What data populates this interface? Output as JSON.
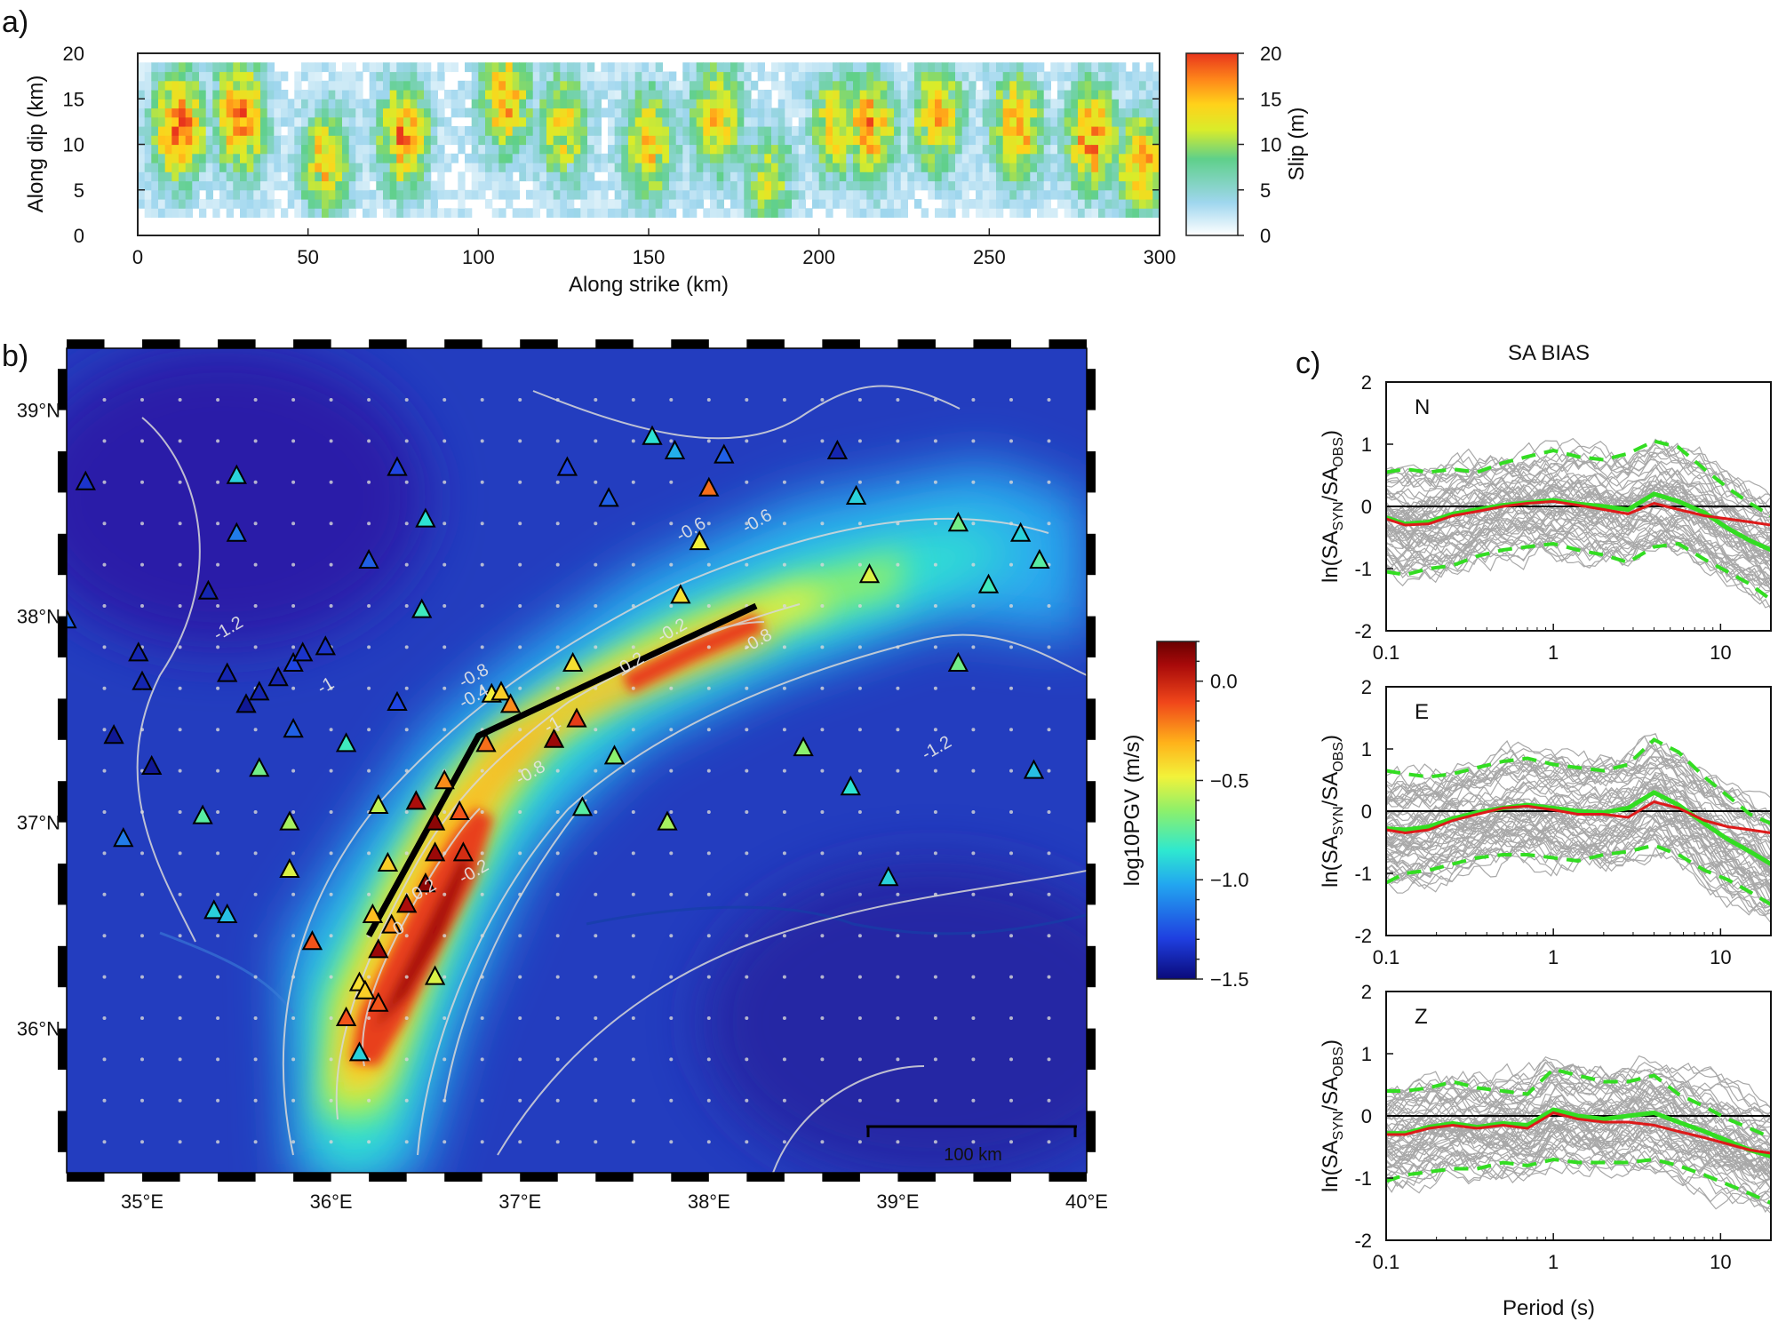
{
  "panels": {
    "a": "a)",
    "b": "b)",
    "c": "c)"
  },
  "chart_data": [
    {
      "id": "slip",
      "type": "heatmap",
      "xlabel": "Along strike (km)",
      "ylabel": "Along dip (km)",
      "xlim": [
        0,
        300
      ],
      "ylim": [
        0,
        20
      ],
      "xticks": [
        0,
        50,
        100,
        150,
        200,
        250,
        300
      ],
      "yticks": [
        0,
        5,
        10,
        15,
        20
      ],
      "patch_centers_km": [
        12,
        30,
        55,
        78,
        108,
        125,
        150,
        170,
        185,
        205,
        215,
        235,
        258,
        280,
        295
      ],
      "patch_peak_slip_m": [
        19,
        18,
        13,
        16,
        15,
        12,
        13,
        14,
        10,
        12,
        16,
        14,
        16,
        17,
        15
      ],
      "patch_centers_dip_km": [
        12,
        13,
        8,
        11,
        15,
        12,
        10,
        13,
        6,
        12,
        12,
        13,
        12,
        11,
        8
      ],
      "colorbar": {
        "label": "Slip (m)",
        "range": [
          0,
          20
        ],
        "ticks": [
          0,
          5,
          10,
          15,
          20
        ],
        "colors": [
          "#ffffff",
          "#9fd6ee",
          "#5fd08a",
          "#d9ec2a",
          "#ffd21a",
          "#ff8a1a",
          "#e8351c"
        ]
      }
    },
    {
      "id": "pgv-map",
      "type": "scatter",
      "xlim": [
        34.6,
        40.0
      ],
      "ylim": [
        35.3,
        39.3
      ],
      "xticks": [
        35,
        36,
        37,
        38,
        39,
        40
      ],
      "xticklabels": [
        "35°E",
        "36°E",
        "37°E",
        "38°E",
        "39°E",
        "40°E"
      ],
      "yticks": [
        36,
        37,
        38,
        39
      ],
      "yticklabels": [
        "36°N",
        "37°N",
        "38°N",
        "39°N"
      ],
      "fault_trace_lonlat": [
        [
          36.2,
          36.45
        ],
        [
          36.78,
          37.42
        ],
        [
          38.25,
          38.05
        ]
      ],
      "contour_labels": [
        "0.2",
        "0.2",
        "0",
        "-0.2",
        "-0.2",
        "-0.4",
        "-0.6",
        "-0.6",
        "-0.8",
        "-0.8",
        "-0.8",
        "-1",
        "-1",
        "-1.2",
        "-1.2"
      ],
      "stations": [
        {
          "lon": 34.7,
          "lat": 38.65,
          "pgv": -1.35
        },
        {
          "lon": 35.5,
          "lat": 38.68,
          "pgv": -1.0
        },
        {
          "lon": 35.5,
          "lat": 38.4,
          "pgv": -1.2
        },
        {
          "lon": 34.6,
          "lat": 37.98,
          "pgv": -1.25
        },
        {
          "lon": 35.35,
          "lat": 38.12,
          "pgv": -1.4
        },
        {
          "lon": 34.98,
          "lat": 37.82,
          "pgv": -1.4
        },
        {
          "lon": 35.0,
          "lat": 37.68,
          "pgv": -1.4
        },
        {
          "lon": 35.45,
          "lat": 37.72,
          "pgv": -1.4
        },
        {
          "lon": 35.55,
          "lat": 37.57,
          "pgv": -1.45
        },
        {
          "lon": 35.62,
          "lat": 37.63,
          "pgv": -1.4
        },
        {
          "lon": 35.72,
          "lat": 37.7,
          "pgv": -1.4
        },
        {
          "lon": 35.8,
          "lat": 37.77,
          "pgv": -1.3
        },
        {
          "lon": 35.85,
          "lat": 37.82,
          "pgv": -1.35
        },
        {
          "lon": 35.97,
          "lat": 37.85,
          "pgv": -1.35
        },
        {
          "lon": 34.85,
          "lat": 37.42,
          "pgv": -1.45
        },
        {
          "lon": 35.05,
          "lat": 37.27,
          "pgv": -1.45
        },
        {
          "lon": 35.8,
          "lat": 37.45,
          "pgv": -1.25
        },
        {
          "lon": 36.08,
          "lat": 37.38,
          "pgv": -0.9
        },
        {
          "lon": 35.62,
          "lat": 37.26,
          "pgv": -0.8
        },
        {
          "lon": 34.9,
          "lat": 36.92,
          "pgv": -1.2
        },
        {
          "lon": 35.32,
          "lat": 37.03,
          "pgv": -0.85
        },
        {
          "lon": 35.78,
          "lat": 37.0,
          "pgv": -0.7
        },
        {
          "lon": 35.78,
          "lat": 36.77,
          "pgv": -0.6
        },
        {
          "lon": 35.38,
          "lat": 36.57,
          "pgv": -1.0
        },
        {
          "lon": 35.45,
          "lat": 36.55,
          "pgv": -1.05
        },
        {
          "lon": 35.9,
          "lat": 36.42,
          "pgv": -0.2
        },
        {
          "lon": 36.35,
          "lat": 38.72,
          "pgv": -1.3
        },
        {
          "lon": 36.2,
          "lat": 38.27,
          "pgv": -1.25
        },
        {
          "lon": 36.5,
          "lat": 38.47,
          "pgv": -0.95
        },
        {
          "lon": 36.48,
          "lat": 38.03,
          "pgv": -0.9
        },
        {
          "lon": 36.35,
          "lat": 37.58,
          "pgv": -1.3
        },
        {
          "lon": 36.85,
          "lat": 37.62,
          "pgv": -0.55
        },
        {
          "lon": 36.9,
          "lat": 37.63,
          "pgv": -0.45
        },
        {
          "lon": 36.95,
          "lat": 37.57,
          "pgv": -0.3
        },
        {
          "lon": 37.28,
          "lat": 37.77,
          "pgv": -0.5
        },
        {
          "lon": 36.82,
          "lat": 37.38,
          "pgv": -0.25
        },
        {
          "lon": 37.18,
          "lat": 37.4,
          "pgv": 0.05
        },
        {
          "lon": 37.3,
          "lat": 37.5,
          "pgv": -0.15
        },
        {
          "lon": 37.5,
          "lat": 37.32,
          "pgv": -0.75
        },
        {
          "lon": 37.33,
          "lat": 37.07,
          "pgv": -0.85
        },
        {
          "lon": 37.78,
          "lat": 37.0,
          "pgv": -0.7
        },
        {
          "lon": 37.25,
          "lat": 38.72,
          "pgv": -1.3
        },
        {
          "lon": 37.47,
          "lat": 38.57,
          "pgv": -1.25
        },
        {
          "lon": 37.7,
          "lat": 38.87,
          "pgv": -0.95
        },
        {
          "lon": 37.82,
          "lat": 38.8,
          "pgv": -1.1
        },
        {
          "lon": 38.08,
          "lat": 38.78,
          "pgv": -1.25
        },
        {
          "lon": 38.0,
          "lat": 38.62,
          "pgv": -0.25
        },
        {
          "lon": 37.95,
          "lat": 38.36,
          "pgv": -0.55
        },
        {
          "lon": 37.85,
          "lat": 38.1,
          "pgv": -0.5
        },
        {
          "lon": 38.68,
          "lat": 38.8,
          "pgv": -1.4
        },
        {
          "lon": 38.78,
          "lat": 38.58,
          "pgv": -1.0
        },
        {
          "lon": 38.85,
          "lat": 38.2,
          "pgv": -0.6
        },
        {
          "lon": 39.32,
          "lat": 38.45,
          "pgv": -0.8
        },
        {
          "lon": 39.65,
          "lat": 38.4,
          "pgv": -1.0
        },
        {
          "lon": 39.75,
          "lat": 38.27,
          "pgv": -0.85
        },
        {
          "lon": 39.48,
          "lat": 38.15,
          "pgv": -0.9
        },
        {
          "lon": 39.32,
          "lat": 37.77,
          "pgv": -0.8
        },
        {
          "lon": 38.5,
          "lat": 37.36,
          "pgv": -0.75
        },
        {
          "lon": 39.72,
          "lat": 37.25,
          "pgv": -1.05
        },
        {
          "lon": 38.75,
          "lat": 37.17,
          "pgv": -0.95
        },
        {
          "lon": 38.95,
          "lat": 36.73,
          "pgv": -1.0
        },
        {
          "lon": 36.45,
          "lat": 37.1,
          "pgv": 0.0
        },
        {
          "lon": 36.55,
          "lat": 37.0,
          "pgv": 0.1
        },
        {
          "lon": 36.55,
          "lat": 36.85,
          "pgv": 0.05
        },
        {
          "lon": 36.5,
          "lat": 36.7,
          "pgv": 0.1
        },
        {
          "lon": 36.4,
          "lat": 36.6,
          "pgv": 0.0
        },
        {
          "lon": 36.6,
          "lat": 37.2,
          "pgv": -0.3
        },
        {
          "lon": 36.68,
          "lat": 37.05,
          "pgv": -0.2
        },
        {
          "lon": 36.3,
          "lat": 36.8,
          "pgv": -0.45
        },
        {
          "lon": 36.22,
          "lat": 36.55,
          "pgv": -0.4
        },
        {
          "lon": 36.32,
          "lat": 36.5,
          "pgv": -0.3
        },
        {
          "lon": 36.25,
          "lat": 36.38,
          "pgv": 0.05
        },
        {
          "lon": 36.15,
          "lat": 36.22,
          "pgv": -0.5
        },
        {
          "lon": 36.18,
          "lat": 36.18,
          "pgv": -0.45
        },
        {
          "lon": 36.08,
          "lat": 36.05,
          "pgv": -0.2
        },
        {
          "lon": 36.25,
          "lat": 36.12,
          "pgv": -0.2
        },
        {
          "lon": 36.55,
          "lat": 36.25,
          "pgv": -0.6
        },
        {
          "lon": 36.7,
          "lat": 36.85,
          "pgv": -0.1
        },
        {
          "lon": 36.15,
          "lat": 35.88,
          "pgv": -1.0
        },
        {
          "lon": 36.25,
          "lat": 37.08,
          "pgv": -0.65
        }
      ],
      "colorbar": {
        "label": "log10PGV (m/s)",
        "range": [
          -1.5,
          0.2
        ],
        "ticks": [
          0.0,
          -0.5,
          -1.0,
          -1.5
        ],
        "ticklabels": [
          "0.0",
          "−0.5",
          "−1.0",
          "−1.5"
        ],
        "colors": [
          "#0a0a7a",
          "#1f3fe0",
          "#22a6f0",
          "#2ee8d0",
          "#8ef06a",
          "#f2f23a",
          "#ffb21a",
          "#f0461a",
          "#a80a0a",
          "#6a0000"
        ]
      },
      "scale_bar": "100 km"
    },
    {
      "id": "sa-bias",
      "type": "line",
      "title": "SA BIAS",
      "xscale": "log",
      "xlim": [
        0.1,
        20
      ],
      "ylim": [
        -2,
        2
      ],
      "xticks": [
        0.1,
        1,
        10
      ],
      "xticklabels": [
        "0.1",
        "1",
        "10"
      ],
      "yticks": [
        -2,
        -1,
        0,
        1,
        2
      ],
      "xlabel": "Period (s)",
      "ylabel": "ln(SA_SYN/SA_OBS)",
      "ylabel_parts": {
        "a": "ln(SA",
        "b": "SYN",
        "c": "/SA",
        "d": "OBS",
        "e": ")"
      },
      "periods": [
        0.1,
        0.13,
        0.18,
        0.25,
        0.35,
        0.5,
        0.7,
        1.0,
        1.4,
        2.0,
        2.8,
        4.0,
        5.6,
        8.0,
        11.0,
        15.0,
        20.0
      ],
      "components": [
        {
          "name": "N",
          "mean_red": [
            -0.2,
            -0.3,
            -0.28,
            -0.15,
            -0.08,
            0.0,
            0.05,
            0.08,
            0.02,
            -0.05,
            -0.12,
            0.05,
            -0.05,
            -0.15,
            -0.2,
            -0.25,
            -0.3
          ],
          "mean_green": [
            -0.18,
            -0.28,
            -0.25,
            -0.12,
            -0.05,
            0.02,
            0.06,
            0.1,
            0.04,
            0.0,
            -0.05,
            0.2,
            0.08,
            -0.1,
            -0.35,
            -0.55,
            -0.7
          ],
          "plus_sigma": [
            0.55,
            0.6,
            0.55,
            0.6,
            0.55,
            0.7,
            0.8,
            0.9,
            0.8,
            0.75,
            0.85,
            1.05,
            0.95,
            0.6,
            0.3,
            0.05,
            -0.15
          ],
          "minus_sigma": [
            -1.05,
            -1.1,
            -1.0,
            -0.95,
            -0.8,
            -0.7,
            -0.65,
            -0.6,
            -0.7,
            -0.78,
            -0.9,
            -0.65,
            -0.6,
            -0.85,
            -1.05,
            -1.25,
            -1.5
          ]
        },
        {
          "name": "E",
          "mean_red": [
            -0.3,
            -0.35,
            -0.3,
            -0.15,
            -0.05,
            0.05,
            0.08,
            0.02,
            -0.05,
            -0.05,
            -0.1,
            0.15,
            0.05,
            -0.15,
            -0.25,
            -0.3,
            -0.35
          ],
          "mean_green": [
            -0.28,
            -0.3,
            -0.25,
            -0.12,
            -0.02,
            0.05,
            0.1,
            0.05,
            0.0,
            -0.02,
            0.05,
            0.3,
            0.1,
            -0.2,
            -0.45,
            -0.65,
            -0.85
          ],
          "plus_sigma": [
            0.65,
            0.6,
            0.55,
            0.6,
            0.7,
            0.8,
            0.85,
            0.75,
            0.7,
            0.65,
            0.75,
            1.15,
            0.95,
            0.55,
            0.25,
            -0.05,
            -0.2
          ],
          "minus_sigma": [
            -1.15,
            -1.0,
            -0.95,
            -0.85,
            -0.75,
            -0.7,
            -0.7,
            -0.75,
            -0.8,
            -0.7,
            -0.65,
            -0.55,
            -0.7,
            -0.95,
            -1.1,
            -1.3,
            -1.5
          ]
        },
        {
          "name": "Z",
          "mean_red": [
            -0.3,
            -0.3,
            -0.2,
            -0.15,
            -0.2,
            -0.15,
            -0.2,
            0.05,
            -0.05,
            -0.1,
            -0.1,
            -0.15,
            -0.25,
            -0.35,
            -0.45,
            -0.55,
            -0.6
          ],
          "mean_green": [
            -0.28,
            -0.28,
            -0.18,
            -0.12,
            -0.18,
            -0.12,
            -0.15,
            0.1,
            0.0,
            -0.05,
            0.0,
            0.05,
            -0.1,
            -0.25,
            -0.4,
            -0.55,
            -0.65
          ],
          "plus_sigma": [
            0.4,
            0.4,
            0.45,
            0.55,
            0.45,
            0.4,
            0.35,
            0.75,
            0.65,
            0.55,
            0.55,
            0.65,
            0.35,
            0.15,
            -0.05,
            -0.2,
            -0.35
          ],
          "minus_sigma": [
            -1.05,
            -0.95,
            -0.9,
            -0.85,
            -0.85,
            -0.75,
            -0.8,
            -0.7,
            -0.75,
            -0.75,
            -0.75,
            -0.7,
            -0.8,
            -0.95,
            -1.1,
            -1.25,
            -1.4
          ]
        }
      ],
      "num_station_curves": 60
    }
  ]
}
